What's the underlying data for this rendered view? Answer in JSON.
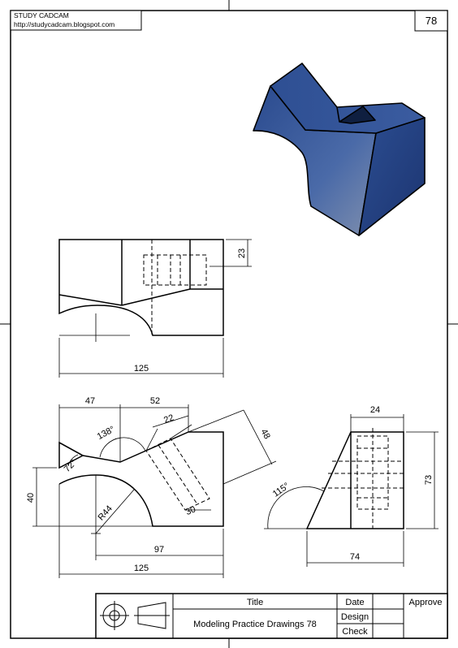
{
  "header": {
    "site_name": "STUDY CADCAM",
    "site_url": "http://studycadcam.blogspot.com",
    "sheet_number": "78"
  },
  "dimensions": {
    "top_view_height": "23",
    "top_view_width": "125",
    "front_left_width": "47",
    "front_mid_width": "52",
    "slot_width": "22",
    "slot_length": "48",
    "v_angle": "138°",
    "left_angle": "72°",
    "left_height": "40",
    "radius": "R44",
    "slot_depth": "30",
    "base_partial": "97",
    "front_total_width": "125",
    "side_top_width": "24",
    "side_angle": "115°",
    "side_height": "73",
    "side_base_width": "74"
  },
  "title_block": {
    "title_header": "Title",
    "title_value": "Modeling Practice Drawings 78",
    "date_label": "Date",
    "design_label": "Design",
    "check_label": "Check",
    "approve_label": "Approve"
  },
  "colors": {
    "solid_top": "#2b4a8a",
    "solid_front": "#3a5a9a",
    "solid_right": "#24407a",
    "solid_dark": "#0f1f40"
  }
}
